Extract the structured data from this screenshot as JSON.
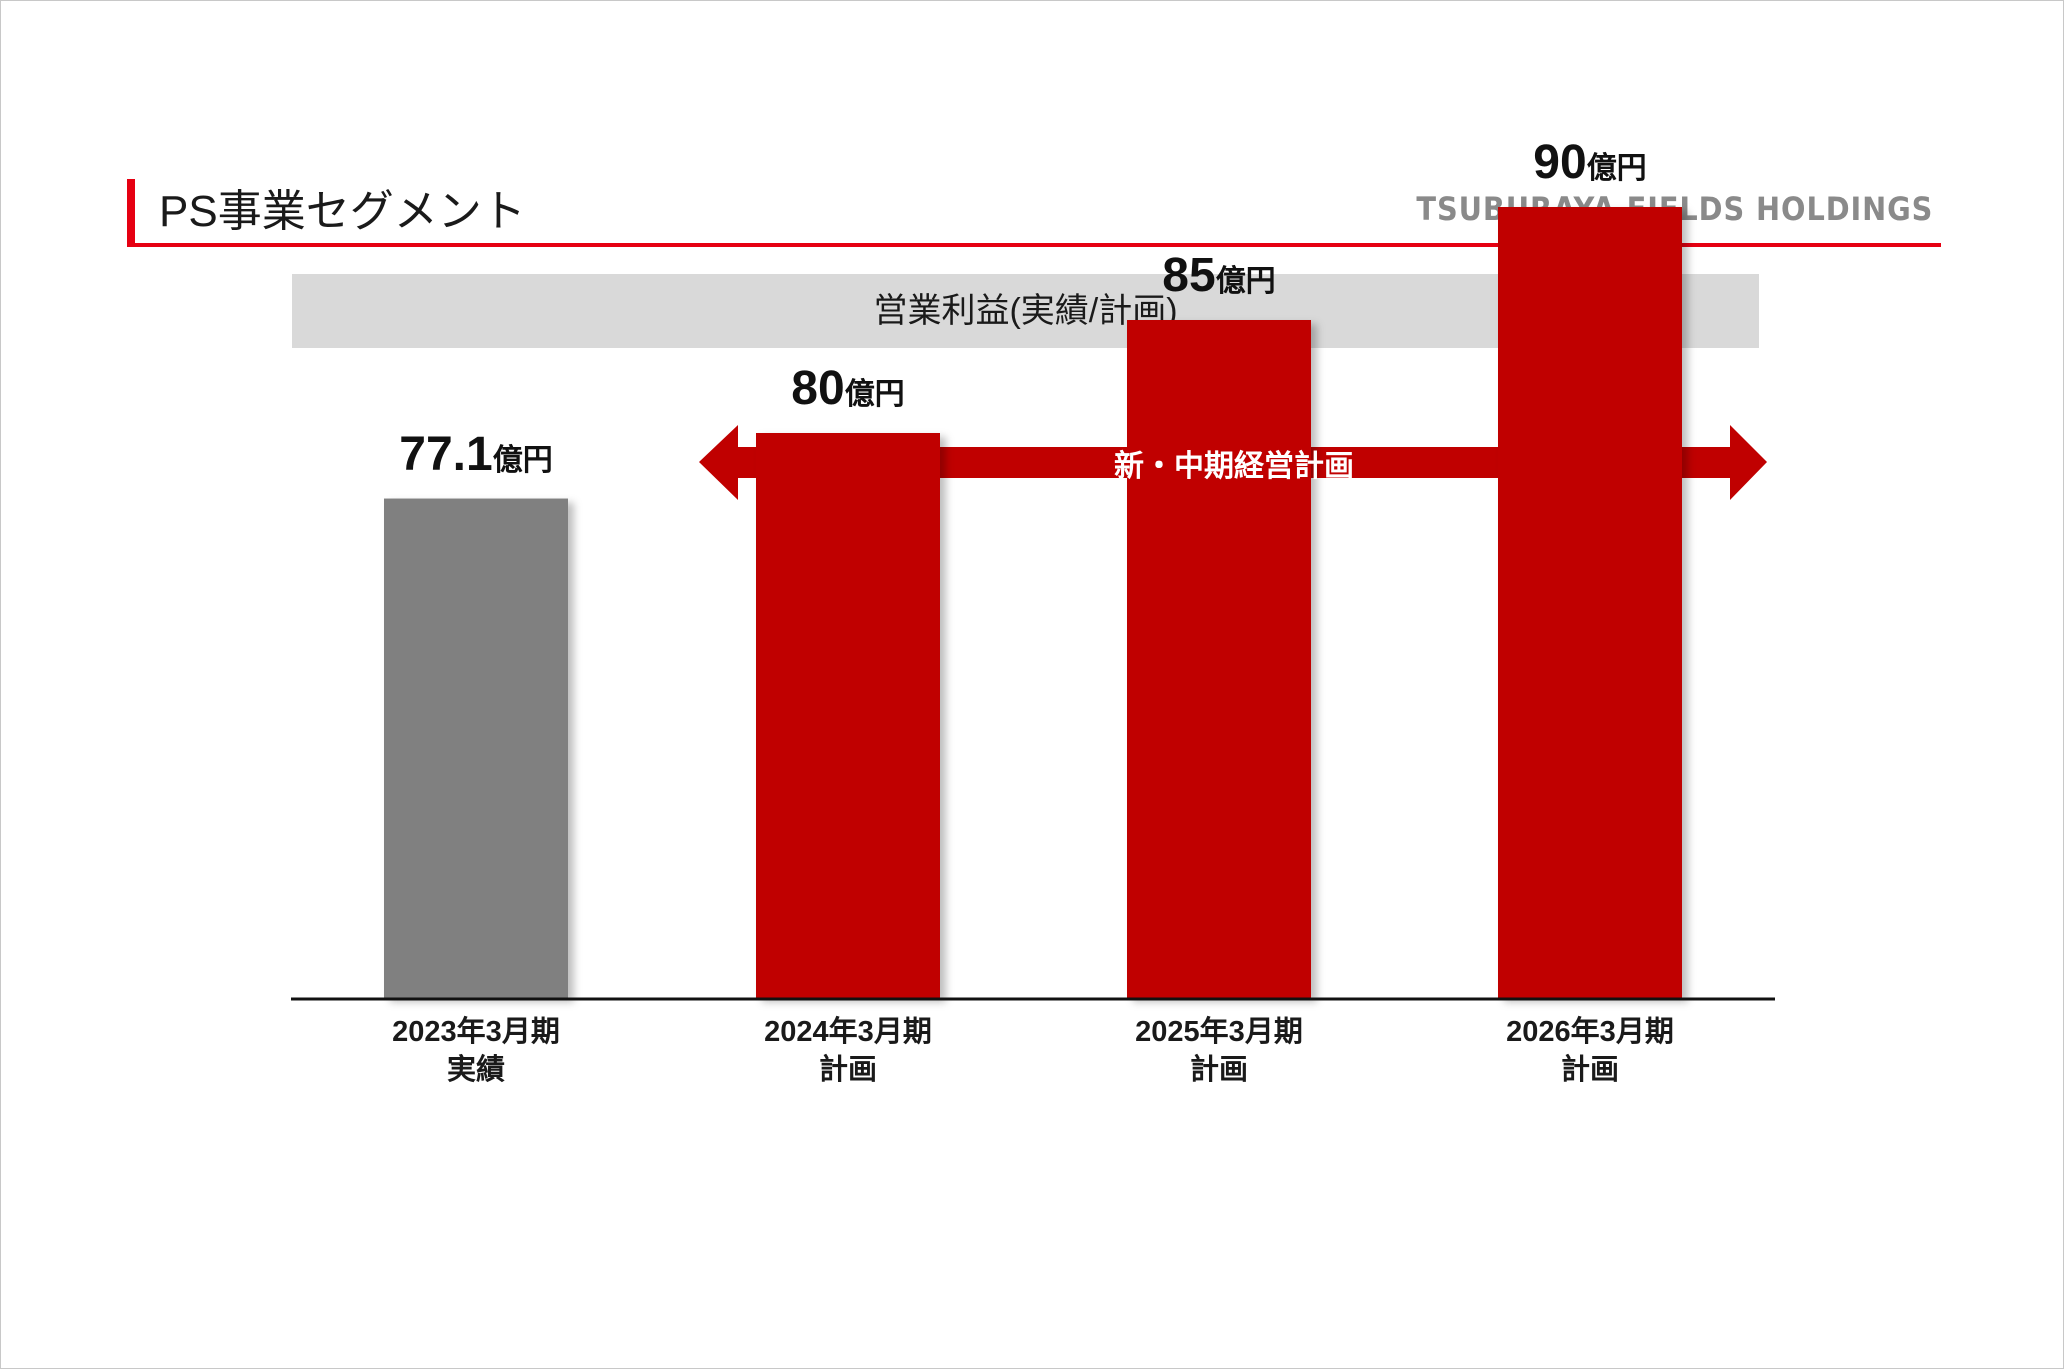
{
  "header": {
    "title": "PS事業セグメント",
    "logo_text": "TSUBURAYA FIELDS HOLDINGS"
  },
  "band_title": "営業利益(実績/計画)",
  "arrow_label": "新・中期経営計画",
  "colors": {
    "accent": "#e60012",
    "actual_bar": "#808080",
    "plan_bar": "#c00000",
    "band": "#d9d9d9"
  },
  "chart_data": {
    "type": "bar",
    "title": "営業利益(実績/計画)",
    "unit": "億円",
    "categories": [
      "2023年3月期 実績",
      "2024年3月期 計画",
      "2025年3月期 計画",
      "2026年3月期 計画"
    ],
    "category_lines": [
      [
        "2023年3月期",
        "実績"
      ],
      [
        "2024年3月期",
        "計画"
      ],
      [
        "2025年3月期",
        "計画"
      ],
      [
        "2026年3月期",
        "計画"
      ]
    ],
    "values": [
      77.1,
      80,
      85,
      90
    ],
    "value_labels": [
      "77.1",
      "80",
      "85",
      "90"
    ],
    "bar_kind": [
      "actual",
      "plan",
      "plan",
      "plan"
    ],
    "ylim": [
      55,
      90
    ],
    "grid": false,
    "legend": "none"
  }
}
